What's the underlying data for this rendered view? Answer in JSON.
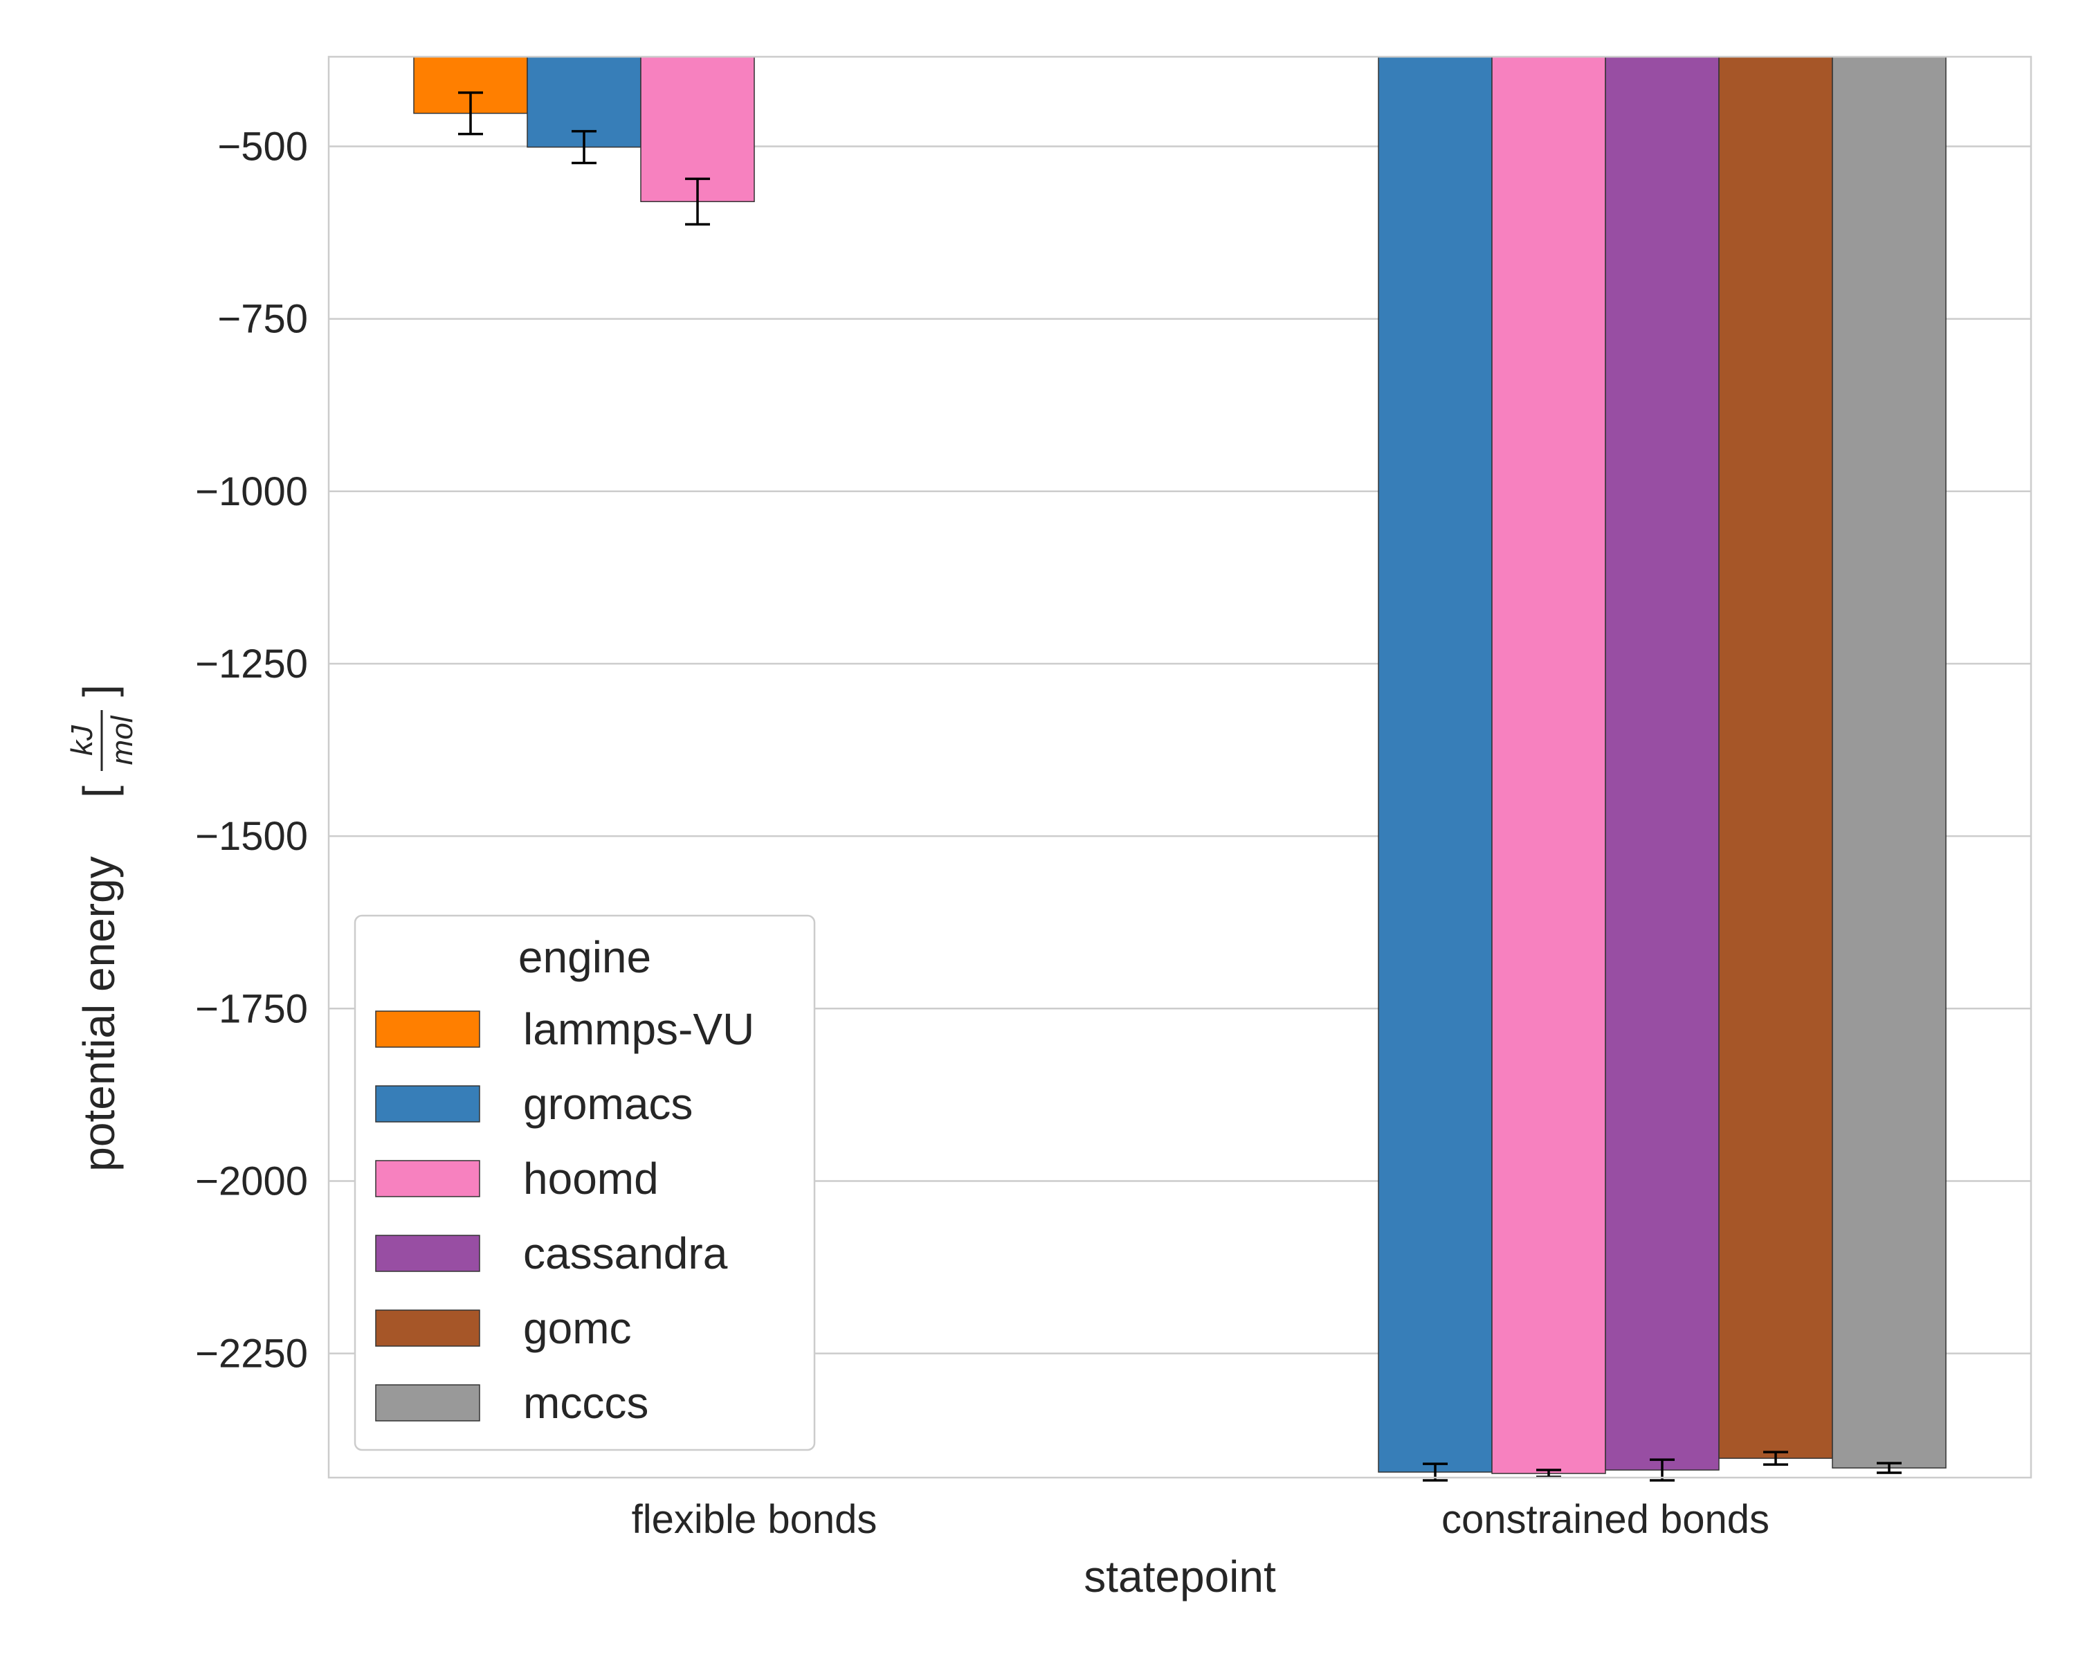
{
  "chart_data": {
    "type": "bar",
    "xlabel": "statepoint",
    "ylabel": "potential energy",
    "ylabel_unit_numerator": "kJ",
    "ylabel_unit_denominator": "mol",
    "ylabel_bracket_left": "[",
    "ylabel_bracket_right": "]",
    "ylim": [
      -2430,
      -370
    ],
    "yticks": [
      -500,
      -750,
      -1000,
      -1250,
      -1500,
      -1750,
      -2000,
      -2250
    ],
    "ytick_labels": [
      "−500",
      "−750",
      "−1000",
      "−1250",
      "−1500",
      "−1750",
      "−2000",
      "−2250"
    ],
    "grid": true,
    "categories": [
      "flexible bonds",
      "constrained bonds"
    ],
    "legend": {
      "title": "engine",
      "placement": "lower-left"
    },
    "series": [
      {
        "name": "lammps-VU",
        "color": "#ff7f00",
        "values": [
          -452,
          null
        ],
        "errors": [
          30,
          null
        ]
      },
      {
        "name": "gromacs",
        "color": "#377eb8",
        "values": [
          -501,
          -2422
        ],
        "errors": [
          23,
          12
        ]
      },
      {
        "name": "hoomd",
        "color": "#f781bf",
        "values": [
          -580,
          -2424
        ],
        "errors": [
          33,
          5
        ]
      },
      {
        "name": "cassandra",
        "color": "#984ea3",
        "values": [
          null,
          -2419
        ],
        "errors": [
          null,
          15
        ]
      },
      {
        "name": "gomc",
        "color": "#a65628",
        "values": [
          null,
          -2402
        ],
        "errors": [
          null,
          9
        ]
      },
      {
        "name": "mcccs",
        "color": "#999999",
        "values": [
          null,
          -2416
        ],
        "errors": [
          null,
          7
        ]
      }
    ]
  }
}
